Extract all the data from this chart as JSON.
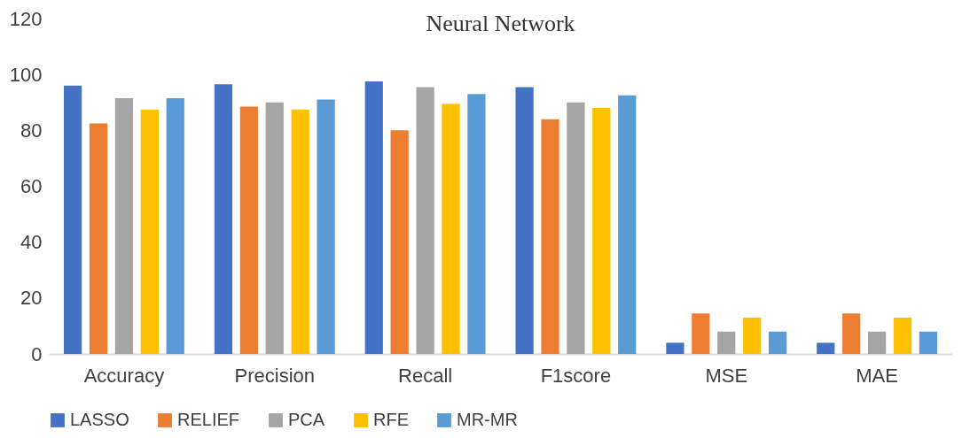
{
  "chart_data": {
    "type": "bar",
    "title": "Neural Network",
    "categories": [
      "Accuracy",
      "Precision",
      "Recall",
      "F1score",
      "MSE",
      "MAE"
    ],
    "series": [
      {
        "name": "LASSO",
        "color": "#4472c4",
        "values": [
          96,
          96.5,
          97.5,
          95.5,
          4,
          4
        ]
      },
      {
        "name": "RELIEF",
        "color": "#ed7d31",
        "values": [
          82.5,
          88.5,
          80,
          84,
          14.5,
          14.5
        ]
      },
      {
        "name": "PCA",
        "color": "#a5a5a5",
        "values": [
          91.5,
          90,
          95.5,
          90,
          8,
          8
        ]
      },
      {
        "name": "RFE",
        "color": "#ffc000",
        "values": [
          87.5,
          87.5,
          89.5,
          88,
          13,
          13
        ]
      },
      {
        "name": "MR-MR",
        "color": "#5b9bd5",
        "values": [
          91.5,
          91,
          93,
          92.5,
          8,
          8
        ]
      }
    ],
    "ylim": [
      0,
      120
    ],
    "yticks": [
      0,
      20,
      40,
      60,
      80,
      100,
      120
    ],
    "grid": false,
    "legend": "bottom"
  }
}
